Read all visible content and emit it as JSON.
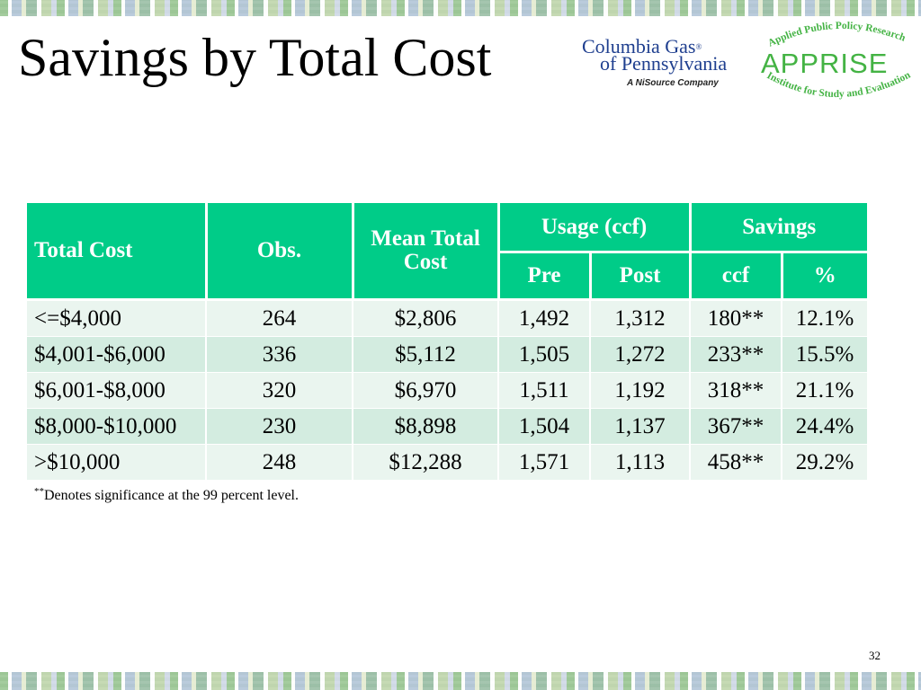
{
  "slide": {
    "title": "Savings by Total Cost",
    "page_number": "32"
  },
  "logos": {
    "columbia": {
      "line1": "Columbia Gas",
      "registered": "®",
      "line2": "of Pennsylvania",
      "line3": "A NiSource Company",
      "color": "#1f3f8f"
    },
    "apprise": {
      "main": "APPRISE",
      "arc_top": "Applied Public Policy Research",
      "arc_bottom": "Institute for Study and Evaluation",
      "color": "#44b344"
    }
  },
  "table": {
    "header_color": "#00cc88",
    "headers": {
      "total_cost": "Total Cost",
      "obs": "Obs.",
      "mean_total_cost_1": "Mean Total",
      "mean_total_cost_2": "Cost",
      "usage": "Usage (ccf)",
      "savings": "Savings",
      "pre": "Pre",
      "post": "Post",
      "ccf": "ccf",
      "pct": "%"
    },
    "rows": [
      [
        "<=$4,000",
        "264",
        "$2,806",
        "1,492",
        "1,312",
        "180**",
        "12.1%"
      ],
      [
        "$4,001-$6,000",
        "336",
        "$5,112",
        "1,505",
        "1,272",
        "233**",
        "15.5%"
      ],
      [
        "$6,001-$8,000",
        "320",
        "$6,970",
        "1,511",
        "1,192",
        "318**",
        "21.1%"
      ],
      [
        "$8,000-$10,000",
        "230",
        "$8,898",
        "1,504",
        "1,137",
        "367**",
        "24.4%"
      ],
      [
        ">$10,000",
        "248",
        "$12,288",
        "1,571",
        "1,113",
        "458**",
        "29.2%"
      ]
    ]
  },
  "footnote": {
    "marker": "**",
    "text": "Denotes significance at the 99 percent level."
  }
}
